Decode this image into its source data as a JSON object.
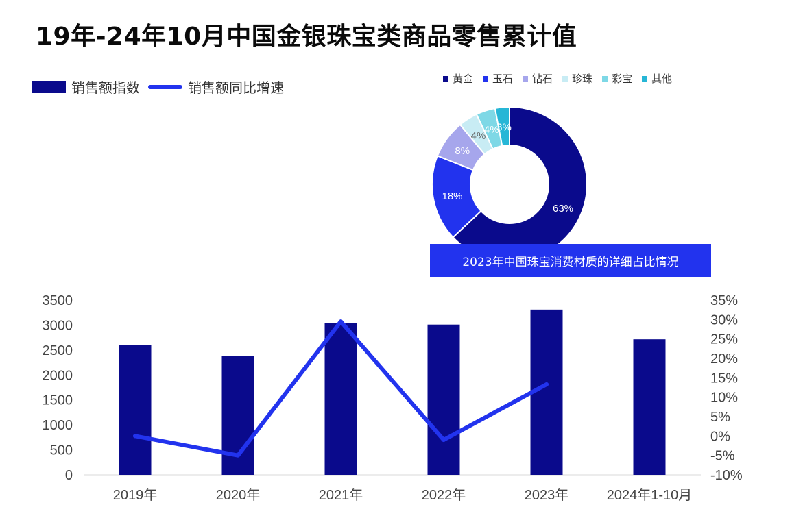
{
  "title": "19年-24年10月中国金银珠宝类商品零售累计值",
  "legend": {
    "bar_label": "销售额指数",
    "line_label": "销售额同比增速"
  },
  "colors": {
    "bar": "#0a0a8c",
    "line": "#2233ee",
    "axis_text": "#444444"
  },
  "chart_data": [
    {
      "type": "bar",
      "categories": [
        "2019年",
        "2020年",
        "2021年",
        "2022年",
        "2023年",
        "2024年1-10月"
      ],
      "series": [
        {
          "name": "销售额指数",
          "axis": "left",
          "type": "bar",
          "values": [
            2600,
            2375,
            3040,
            3010,
            3310,
            2715
          ]
        },
        {
          "name": "销售额同比增速",
          "axis": "right",
          "type": "line",
          "values": [
            0.0,
            -5.0,
            29.5,
            -1.0,
            13.3,
            null
          ]
        }
      ],
      "y_left": {
        "ticks": [
          "0",
          "500",
          "1000",
          "1500",
          "2000",
          "2500",
          "3000",
          "3500"
        ],
        "ylim": [
          0,
          3500
        ]
      },
      "y_right": {
        "ticks": [
          "-10%",
          "-5%",
          "0%",
          "5%",
          "10%",
          "15%",
          "20%",
          "25%",
          "30%",
          "35%"
        ],
        "ylim": [
          -10,
          35
        ]
      },
      "grid": false
    },
    {
      "type": "pie",
      "variant": "donut",
      "caption": "2023年中国珠宝消费材质的详细占比情况",
      "slices": [
        {
          "label": "黄金",
          "value": 63,
          "text": "63%",
          "color": "#0a0a8c"
        },
        {
          "label": "玉石",
          "value": 18,
          "text": "18%",
          "color": "#2233ee"
        },
        {
          "label": "钻石",
          "value": 8,
          "text": "8%",
          "color": "#a6a6ec"
        },
        {
          "label": "珍珠",
          "value": 4,
          "text": "4%",
          "color": "#c8ecf4"
        },
        {
          "label": "彩宝",
          "value": 4,
          "text": "4%",
          "color": "#7ed8e6"
        },
        {
          "label": "其他",
          "value": 3,
          "text": "3%",
          "color": "#26b6d6"
        }
      ],
      "legend_position": "top"
    }
  ]
}
